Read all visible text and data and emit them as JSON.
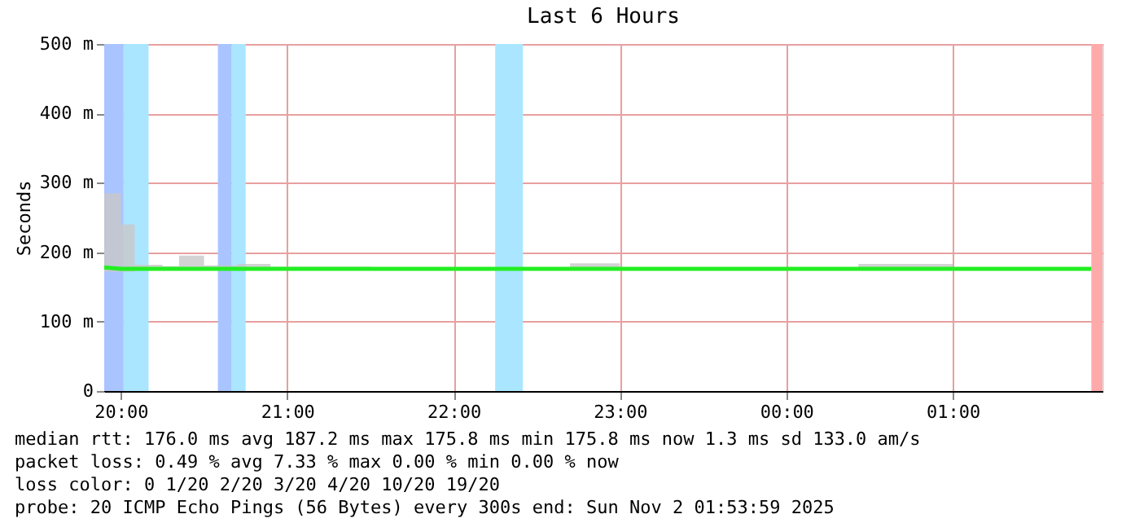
{
  "chart_data": {
    "type": "line",
    "title": "Last 6 Hours",
    "ylabel": "Seconds",
    "x": [
      "2025-11-01T19:54",
      "2025-11-01T20:00",
      "2025-11-01T20:05",
      "2025-11-01T20:15",
      "2025-11-01T20:21",
      "2025-11-01T20:30",
      "2025-11-01T20:42",
      "2025-11-01T20:54",
      "2025-11-01T21:30",
      "2025-11-01T22:00",
      "2025-11-01T22:42",
      "2025-11-01T23:00",
      "2025-11-01T23:30",
      "2025-11-02T00:00",
      "2025-11-02T00:26",
      "2025-11-02T01:00",
      "2025-11-02T01:30",
      "2025-11-02T01:50"
    ],
    "series": [
      {
        "color": "#22ee22",
        "values": [
          178,
          176,
          176,
          176,
          176,
          176,
          176,
          176,
          176,
          176,
          176,
          176,
          176,
          176,
          176,
          176,
          176,
          176
        ],
        "lower": [
          172,
          172,
          174,
          174,
          174,
          174,
          174,
          174,
          175,
          175,
          174,
          175,
          175,
          175,
          174,
          175,
          175,
          175
        ],
        "upper": [
          285,
          240,
          182,
          180,
          195,
          181,
          183,
          179,
          177,
          177,
          184,
          177,
          178,
          177,
          183,
          177,
          178,
          177
        ]
      }
    ],
    "xlim": [
      "2025-11-01T19:54",
      "2025-11-02T01:54"
    ],
    "xticks": [
      {
        "value": "2025-11-01T20:00",
        "label": "20:00"
      },
      {
        "value": "2025-11-01T21:00",
        "label": "21:00"
      },
      {
        "value": "2025-11-01T22:00",
        "label": "22:00"
      },
      {
        "value": "2025-11-01T23:00",
        "label": "23:00"
      },
      {
        "value": "2025-11-02T00:00",
        "label": "00:00"
      },
      {
        "value": "2025-11-02T01:00",
        "label": "01:00"
      }
    ],
    "ylim": [
      0,
      500
    ],
    "yticks": [
      0,
      {
        "value": 100,
        "label": "100 m"
      },
      {
        "value": 200,
        "label": "200 m"
      },
      {
        "value": 300,
        "label": "300 m"
      },
      {
        "value": 400,
        "label": "400 m"
      },
      {
        "value": 500,
        "label": "500 m"
      }
    ],
    "bands": [
      {
        "axis": "x",
        "from": "2025-11-01T19:54",
        "to": "2025-11-01T20:01",
        "color": "#aac4ff"
      },
      {
        "axis": "x",
        "from": "2025-11-01T20:01",
        "to": "2025-11-01T20:10",
        "color": "#aae6ff"
      },
      {
        "axis": "x",
        "from": "2025-11-01T20:35",
        "to": "2025-11-01T20:40",
        "color": "#aac4ff"
      },
      {
        "axis": "x",
        "from": "2025-11-01T20:40",
        "to": "2025-11-01T20:45",
        "color": "#aae6ff"
      },
      {
        "axis": "x",
        "from": "2025-11-01T22:15",
        "to": "2025-11-01T22:25",
        "color": "#aae6ff"
      },
      {
        "axis": "x",
        "from": "2025-11-02T01:50",
        "to": "2025-11-02T01:54",
        "color": "#ffaaaa"
      }
    ],
    "grid": true,
    "annotations": [
      "median rtt:  176.0 ms avg  187.2 ms max  175.8 ms min  175.8 ms now  1.3 ms sd  133.0   am/s",
      "packet loss: 0.49 % avg  7.33 % max  0.00 % min  0.00 % now",
      "loss color:  0  1/20  2/20  3/20  4/20  10/20  19/20",
      "probe:       20 ICMP Echo Pings (56 Bytes) every 300s             end: Sun Nov  2 01:53:59 2025"
    ]
  }
}
